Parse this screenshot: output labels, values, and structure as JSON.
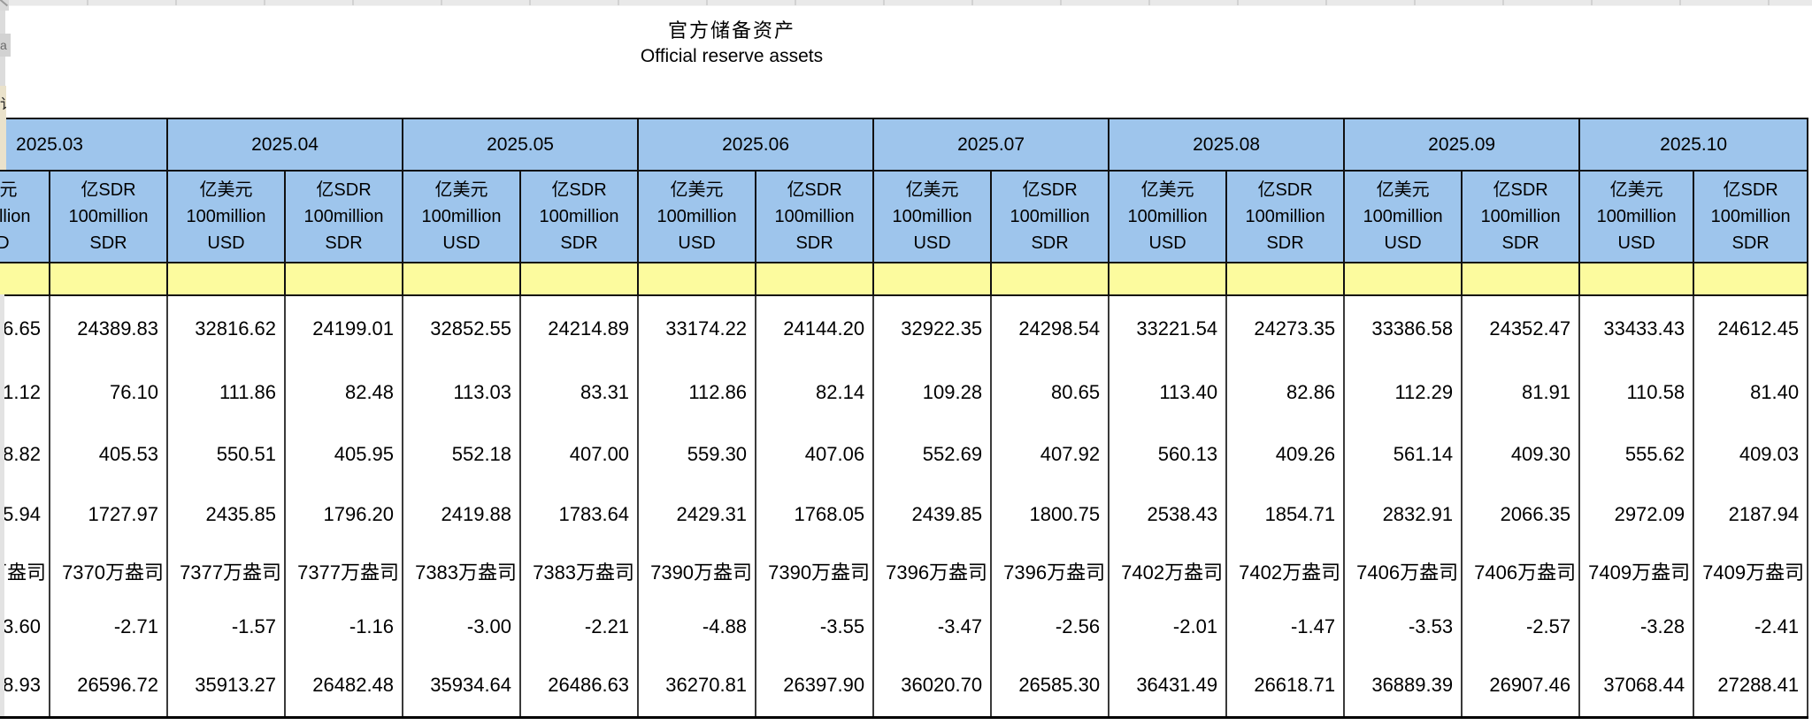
{
  "title": {
    "zh": "官方储备资产",
    "en": "Official reserve assets"
  },
  "table": {
    "months": [
      "2025.03",
      "2025.04",
      "2025.05",
      "2025.06",
      "2025.07",
      "2025.08",
      "2025.09",
      "2025.10"
    ],
    "unit_usd": "亿美元\n100million\nUSD",
    "unit_sdr": "亿SDR\n100million\nSDR",
    "rows": [
      [
        "6.65",
        "24389.83",
        "32816.62",
        "24199.01",
        "32852.55",
        "24214.89",
        "33174.22",
        "24144.20",
        "32922.35",
        "24298.54",
        "33221.54",
        "24273.35",
        "33386.58",
        "24352.47",
        "33433.43",
        "24612.45"
      ],
      [
        "1.12",
        "76.10",
        "111.86",
        "82.48",
        "113.03",
        "83.31",
        "112.86",
        "82.14",
        "109.28",
        "80.65",
        "113.40",
        "82.86",
        "112.29",
        "81.91",
        "110.58",
        "81.40"
      ],
      [
        "8.82",
        "405.53",
        "550.51",
        "405.95",
        "552.18",
        "407.00",
        "559.30",
        "407.06",
        "552.69",
        "407.92",
        "560.13",
        "409.26",
        "561.14",
        "409.30",
        "555.62",
        "409.03"
      ],
      [
        "5.94",
        "1727.97",
        "2435.85",
        "1796.20",
        "2419.88",
        "1783.64",
        "2429.31",
        "1768.05",
        "2439.85",
        "1800.75",
        "2538.43",
        "1854.71",
        "2832.91",
        "2066.35",
        "2972.09",
        "2187.94"
      ],
      [
        "万盎司",
        "7370万盎司",
        "7377万盎司",
        "7377万盎司",
        "7383万盎司",
        "7383万盎司",
        "7390万盎司",
        "7390万盎司",
        "7396万盎司",
        "7396万盎司",
        "7402万盎司",
        "7402万盎司",
        "7406万盎司",
        "7406万盎司",
        "7409万盎司",
        "7409万盎司"
      ],
      [
        "3.60",
        "-2.71",
        "-1.57",
        "-1.16",
        "-3.00",
        "-2.21",
        "-4.88",
        "-3.55",
        "-3.47",
        "-2.56",
        "-2.01",
        "-1.47",
        "-3.53",
        "-2.57",
        "-3.28",
        "-2.41"
      ],
      [
        "8.93",
        "26596.72",
        "35913.27",
        "26482.48",
        "35934.64",
        "26486.63",
        "36270.81",
        "26397.90",
        "36020.70",
        "26585.30",
        "36431.49",
        "26618.71",
        "36889.39",
        "26907.46",
        "37068.44",
        "27288.41"
      ]
    ]
  },
  "fragments": {
    "clipped_glyph_grey_box": "a",
    "clipped_glyph_beige_cell": "讠"
  },
  "colors": {
    "header_blue": "#9ec5ec",
    "highlight_yellow": "#fcfb9e",
    "pane_beige": "#eae2cb",
    "grid_dark": "#111111",
    "grid_data": "#3a3a3a"
  }
}
